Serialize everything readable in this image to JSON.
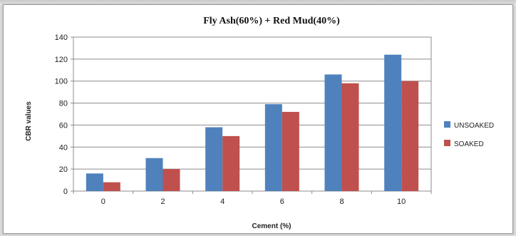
{
  "chart_data": {
    "type": "bar",
    "title": "Fly Ash(60%) + Red Mud(40%)",
    "xlabel": "Cement (%)",
    "ylabel": "CBR values",
    "categories": [
      "0",
      "2",
      "4",
      "6",
      "8",
      "10"
    ],
    "ylim": [
      0,
      140
    ],
    "yticks": [
      "0",
      "20",
      "40",
      "60",
      "80",
      "100",
      "120",
      "140"
    ],
    "grid": true,
    "legend_position": "right",
    "series": [
      {
        "name": "UNSOAKED",
        "color": "#4f81bd",
        "values": [
          16,
          30,
          58,
          79,
          106,
          124
        ]
      },
      {
        "name": "SOAKED",
        "color": "#c0504d",
        "values": [
          8,
          20,
          50,
          72,
          98,
          100
        ]
      }
    ]
  }
}
